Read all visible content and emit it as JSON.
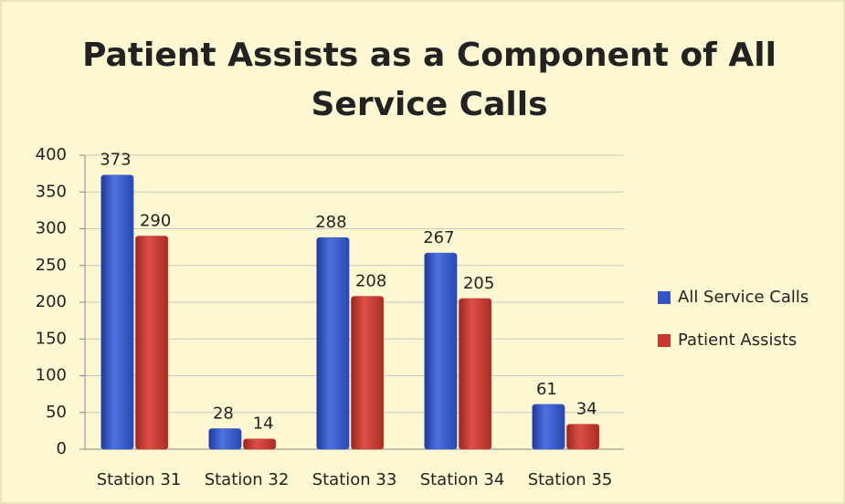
{
  "chart_data": {
    "type": "bar",
    "title": "Patient Assists as a Component of All Service Calls",
    "categories": [
      "Station 31",
      "Station 32",
      "Station 33",
      "Station 34",
      "Station 35"
    ],
    "series": [
      {
        "name": "All Service Calls",
        "color": "#3355c4",
        "values": [
          373,
          28,
          288,
          267,
          61
        ]
      },
      {
        "name": "Patient Assists",
        "color": "#c8382e",
        "values": [
          290,
          14,
          208,
          205,
          34
        ]
      }
    ],
    "ylim": [
      0,
      400
    ],
    "yticks": [
      0,
      50,
      100,
      150,
      200,
      250,
      300,
      350,
      400
    ],
    "grid": true,
    "legend": "right"
  }
}
